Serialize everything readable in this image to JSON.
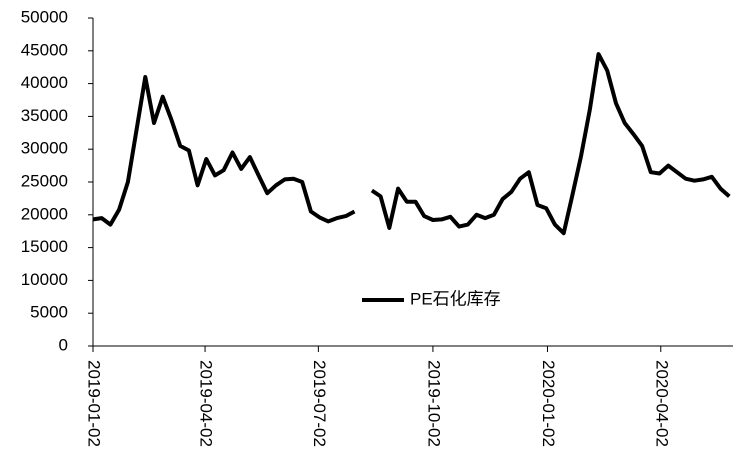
{
  "chart_data": {
    "type": "line",
    "x": [
      "2019-01-02",
      "2019-01-09",
      "2019-01-16",
      "2019-01-23",
      "2019-01-30",
      "2019-02-06",
      "2019-02-13",
      "2019-02-20",
      "2019-02-27",
      "2019-03-06",
      "2019-03-13",
      "2019-03-20",
      "2019-03-27",
      "2019-04-03",
      "2019-04-10",
      "2019-04-17",
      "2019-04-24",
      "2019-05-01",
      "2019-05-08",
      "2019-05-15",
      "2019-05-22",
      "2019-05-29",
      "2019-06-05",
      "2019-06-12",
      "2019-06-19",
      "2019-06-26",
      "2019-07-03",
      "2019-07-10",
      "2019-07-17",
      "2019-07-24",
      "2019-07-31",
      "2019-08-07",
      "2019-08-14",
      "2019-08-21",
      "2019-08-28",
      "2019-09-04",
      "2019-09-11",
      "2019-09-18",
      "2019-09-25",
      "2019-10-02",
      "2019-10-09",
      "2019-10-16",
      "2019-10-23",
      "2019-10-30",
      "2019-11-06",
      "2019-11-13",
      "2019-11-20",
      "2019-11-27",
      "2019-12-04",
      "2019-12-11",
      "2019-12-18",
      "2019-12-25",
      "2020-01-01",
      "2020-01-08",
      "2020-01-15",
      "2020-01-22",
      "2020-01-29",
      "2020-02-05",
      "2020-02-12",
      "2020-02-19",
      "2020-02-26",
      "2020-03-04",
      "2020-03-11",
      "2020-03-18",
      "2020-03-25",
      "2020-04-01",
      "2020-04-08",
      "2020-04-15",
      "2020-04-22",
      "2020-04-29",
      "2020-05-06",
      "2020-05-13",
      "2020-05-20",
      "2020-05-27"
    ],
    "series": [
      {
        "name": "PE石化库存",
        "color": "#000000",
        "values": [
          19300,
          19500,
          18500,
          20800,
          25000,
          33000,
          41000,
          34000,
          38000,
          34500,
          30500,
          29800,
          24500,
          28500,
          26000,
          26800,
          29500,
          27000,
          28800,
          26000,
          23300,
          24500,
          25400,
          25500,
          25000,
          20500,
          19600,
          19000,
          19500,
          19800,
          20500,
          null,
          23700,
          22800,
          18000,
          24000,
          22000,
          22000,
          19800,
          19200,
          19300,
          19700,
          18200,
          18500,
          20000,
          19500,
          20000,
          22400,
          23500,
          25500,
          26500,
          21500,
          21000,
          18500,
          17200,
          23000,
          29000,
          36000,
          44500,
          42000,
          37000,
          34000,
          32300,
          30500,
          26500,
          26300,
          27500,
          26500,
          25500,
          25200,
          25400,
          25800,
          24000,
          22800
        ]
      }
    ],
    "xlim": [
      "2019-01-02",
      "2020-05-30"
    ],
    "xticks": [
      "2019-01-02",
      "2019-04-02",
      "2019-07-02",
      "2019-10-02",
      "2020-01-02",
      "2020-04-02"
    ],
    "ylim": [
      0,
      50000
    ],
    "yticks": [
      0,
      5000,
      10000,
      15000,
      20000,
      25000,
      30000,
      35000,
      40000,
      45000,
      50000
    ],
    "legend": "inside-bottom-center"
  }
}
